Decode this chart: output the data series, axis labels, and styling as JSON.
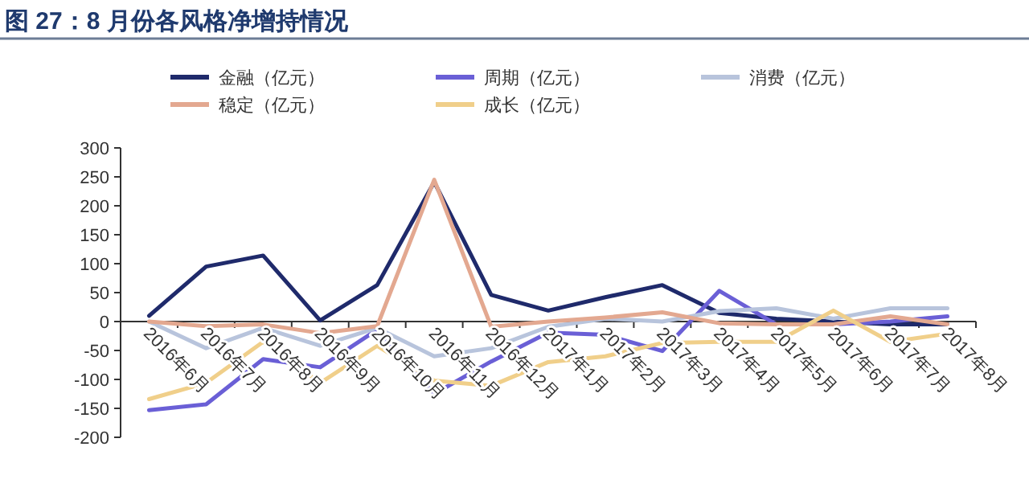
{
  "chart_data": {
    "type": "line",
    "title": "图 27：8 月份各风格净增持情况",
    "categories": [
      "2016年6月",
      "2016年7月",
      "2016年8月",
      "2016年9月",
      "2016年10月",
      "2016年11月",
      "2016年12月",
      "2017年1月",
      "2017年2月",
      "2017年3月",
      "2017年4月",
      "2017年5月",
      "2017年6月",
      "2017年7月",
      "2017年8月"
    ],
    "series": [
      {
        "name": "金融（亿元）",
        "color": "#1f2a6b",
        "values": [
          10,
          95,
          114,
          2,
          63,
          241,
          46,
          19,
          42,
          63,
          15,
          5,
          0,
          -5,
          -5
        ]
      },
      {
        "name": "周期（亿元）",
        "color": "#6a5fd6",
        "values": [
          -153,
          -143,
          -65,
          -79,
          -14,
          -125,
          -69,
          -19,
          -23,
          -51,
          53,
          -5,
          -5,
          0,
          9
        ]
      },
      {
        "name": "消费（亿元）",
        "color": "#b8c4dc",
        "values": [
          0,
          -46,
          -11,
          -42,
          -11,
          -60,
          -46,
          -9,
          5,
          0,
          18,
          23,
          5,
          23,
          23
        ]
      },
      {
        "name": "稳定（亿元）",
        "color": "#e3a890",
        "values": [
          0,
          -8,
          -5,
          -20,
          -8,
          245,
          -9,
          0,
          7,
          16,
          -3,
          -5,
          -5,
          9,
          -5
        ]
      },
      {
        "name": "成长（亿元）",
        "color": "#f0cf8a",
        "values": [
          -134,
          -106,
          -35,
          -106,
          -42,
          -102,
          -111,
          -70,
          -60,
          -37,
          -35,
          -35,
          19,
          -35,
          -21
        ]
      }
    ],
    "ylim": [
      -200,
      300
    ],
    "yticks": [
      -200,
      -150,
      -100,
      -50,
      0,
      50,
      100,
      150,
      200,
      250,
      300
    ],
    "grid": false,
    "legend": "top",
    "marker": "none",
    "line_style": "solid"
  }
}
